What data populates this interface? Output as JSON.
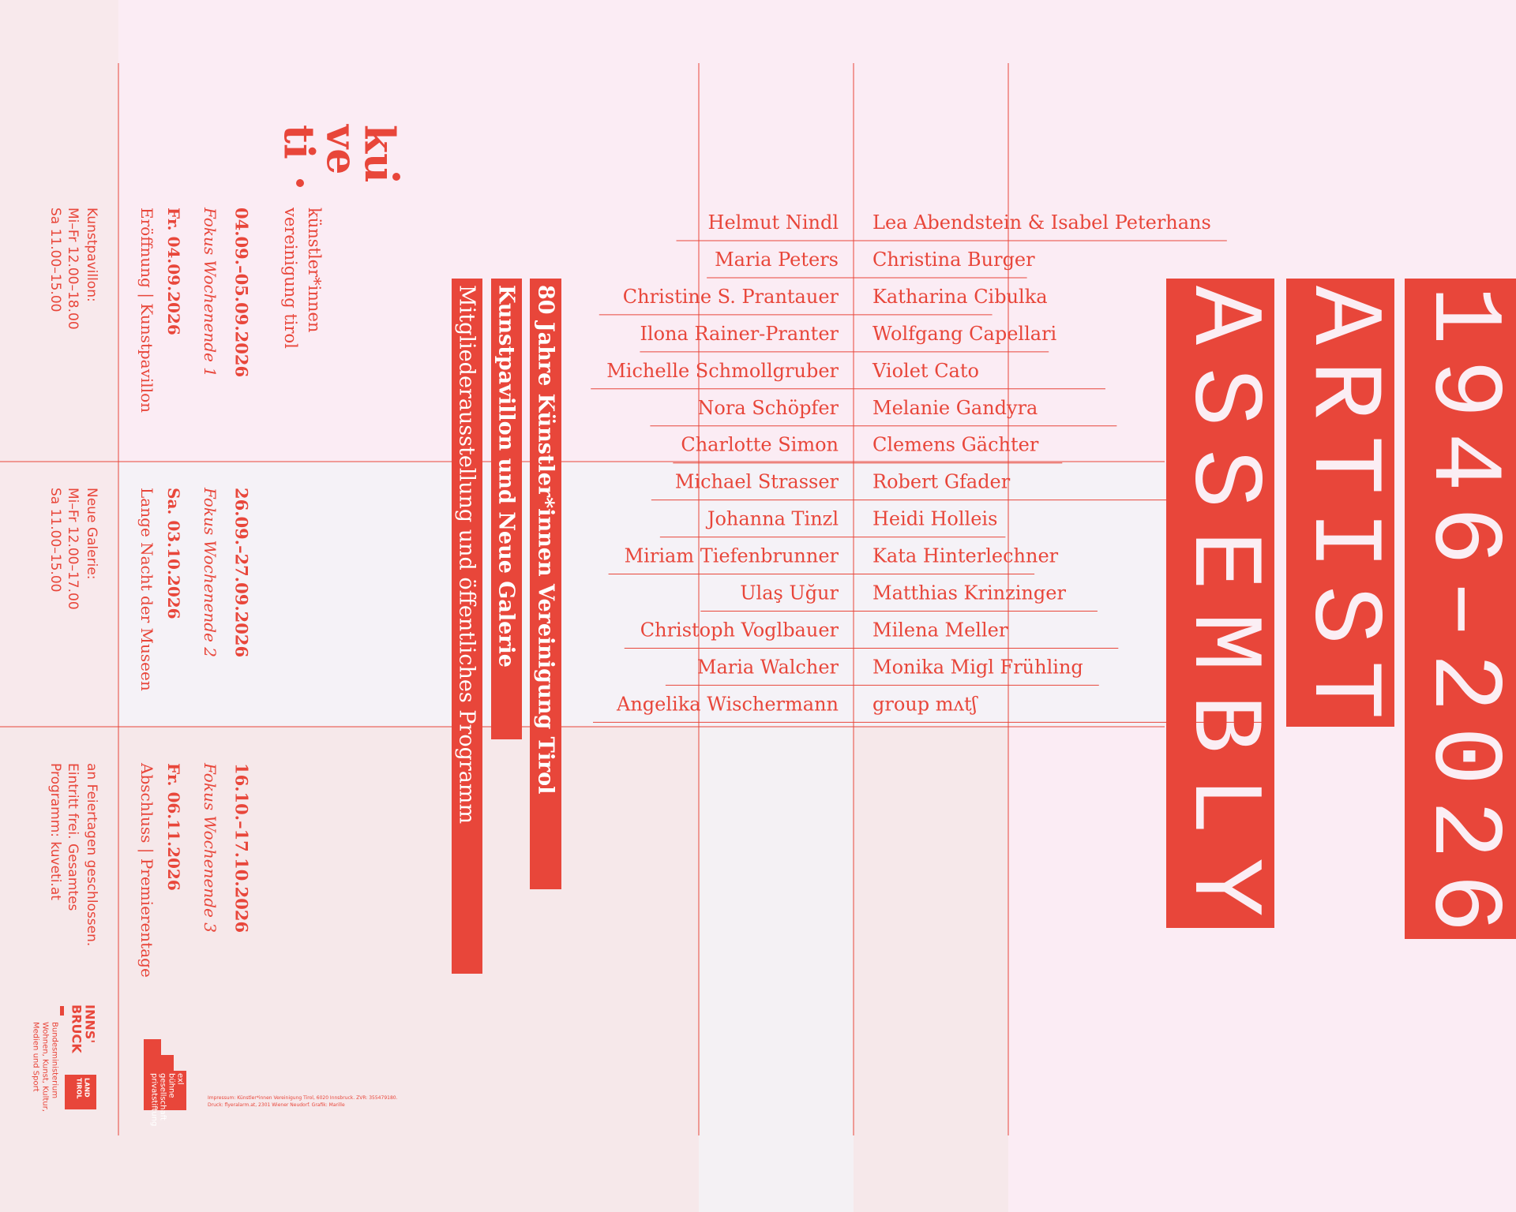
{
  "logo": [
    "ku",
    "ve",
    "ti"
  ],
  "organization": [
    "künstler*innen",
    "vereinigung tirol"
  ],
  "schedule": [
    {
      "dates": "04.09.–05.09.2026",
      "focus": "Fokus Wochenende 1",
      "event_date": "Fr. 04.09.2026",
      "event": "Eröffnung | Kunstpavillon",
      "info": [
        "Kunstpavillon:",
        "Mi–Fr 12.00–18.00",
        "Sa 11.00–15.00"
      ]
    },
    {
      "dates": "26.09.–27.09.2026",
      "focus": "Fokus Wochenende 2",
      "event_date": "Sa. 03.10.2026",
      "event": "Lange Nacht der Museen",
      "info": [
        "Neue Galerie:",
        "Mi–Fr 12.00–17.00",
        "Sa 11.00–15.00"
      ]
    },
    {
      "dates": "16.10.–17.10.2026",
      "focus": "Fokus Wochenende 3",
      "event_date": "Fr. 06.11.2026",
      "event": "Abschluss | Premierentage",
      "info": [
        "an Feiertagen geschlossen.",
        "Eintritt frei. Gesamtes",
        "Programm: kuveti.at"
      ]
    }
  ],
  "headlines": [
    "80 Jahre Künstler*innen Vereinigung Tirol",
    "Kunstpavillon und Neue Galerie",
    "Mitgliederausstellung und öffentliches Programm"
  ],
  "title": {
    "years": "1946–2026",
    "line1": "ARTIST",
    "line2": "ASSEMBLY"
  },
  "artists": {
    "left": [
      "Helmut Nindl",
      "Maria Peters",
      "Christine S. Prantauer",
      "Ilona Rainer-Pranter",
      "Michelle Schmollgruber",
      "Nora Schöpfer",
      "Charlotte Simon",
      "Michael Strasser",
      "Johanna Tinzl",
      "Miriam Tiefenbrunner",
      "Ulaş Uğur",
      "Christoph Voglbauer",
      "Maria Walcher",
      "Angelika Wischermann"
    ],
    "right": [
      "Lea Abendstein & Isabel Peterhans",
      "Christina Burger",
      "Katharina Cibulka",
      "Wolfgang Capellari",
      "Violet Cato",
      "Melanie Gandyra",
      "Clemens Gächter",
      "Robert Gfader",
      "Heidi Holleis",
      "Kata Hinterlechner",
      "Matthias Krinzinger",
      "Milena Meller",
      "Monika Migl Frühling",
      "group mʌtʃ"
    ]
  },
  "sponsors": {
    "innsbruck": [
      "INNS'",
      "BRUCK"
    ],
    "ministry": [
      "Bundesministerium",
      "Wohnen, Kunst, Kultur,",
      "Medien und Sport"
    ],
    "land_tirol": [
      "LAND",
      "TIROL"
    ],
    "exl": [
      "exl",
      "bühne",
      "gesellschaft",
      "privatstiftung"
    ]
  },
  "imprint": [
    "Impressum: Künstler*innen Vereinigung Tirol, 6020 Innsbruck. ZVR: 355479180.",
    "Druck: flyeralarm.at, 2301 Wiener Neudorf. Grafik: Marille"
  ]
}
